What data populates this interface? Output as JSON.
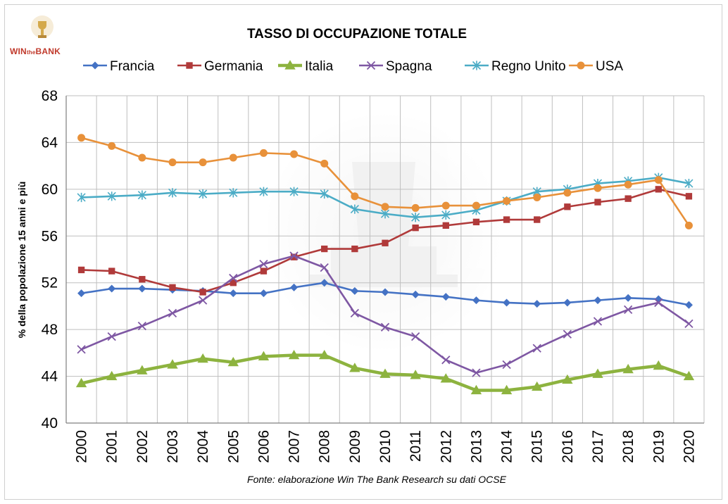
{
  "logo": {
    "brand_prefix": "WIN",
    "brand_mid": "the",
    "brand_suffix": "BANK"
  },
  "chart_data": {
    "type": "line",
    "title": "TASSO DI OCCUPAZIONE TOTALE",
    "ylabel": "% della popolazione 15 anni e più",
    "source": "Fonte: elaborazione Win The Bank Research su dati OCSE",
    "ylim": [
      40,
      68
    ],
    "yticks": [
      40,
      44,
      48,
      52,
      56,
      60,
      64,
      68
    ],
    "grid": true,
    "legend_position": "top",
    "x": [
      "2000",
      "2001",
      "2002",
      "2003",
      "2004",
      "2005",
      "2006",
      "2007",
      "2008",
      "2009",
      "2010",
      "2011",
      "2012",
      "2013",
      "2014",
      "2015",
      "2016",
      "2017",
      "2018",
      "2019",
      "2020"
    ],
    "series": [
      {
        "name": "Francia",
        "color": "#4472C4",
        "marker": "diamond",
        "values": [
          51.1,
          51.5,
          51.5,
          51.4,
          51.3,
          51.1,
          51.1,
          51.6,
          52.0,
          51.3,
          51.2,
          51.0,
          50.8,
          50.5,
          50.3,
          50.2,
          50.3,
          50.5,
          50.7,
          50.6,
          50.1
        ]
      },
      {
        "name": "Germania",
        "color": "#B03A3A",
        "marker": "square",
        "values": [
          53.1,
          53.0,
          52.3,
          51.6,
          51.2,
          52.0,
          53.0,
          54.2,
          54.9,
          54.9,
          55.4,
          56.7,
          56.9,
          57.2,
          57.4,
          57.4,
          58.5,
          58.9,
          59.2,
          60.0,
          59.4
        ]
      },
      {
        "name": "Italia",
        "color": "#8DB33F",
        "marker": "triangle",
        "values": [
          43.4,
          44.0,
          44.5,
          45.0,
          45.5,
          45.2,
          45.7,
          45.8,
          45.8,
          44.7,
          44.2,
          44.1,
          43.8,
          42.8,
          42.8,
          43.1,
          43.7,
          44.2,
          44.6,
          44.9,
          44.0
        ]
      },
      {
        "name": "Spagna",
        "color": "#7E57A3",
        "marker": "x",
        "values": [
          46.3,
          47.4,
          48.3,
          49.4,
          50.5,
          52.4,
          53.6,
          54.3,
          53.3,
          49.4,
          48.2,
          47.4,
          45.4,
          44.3,
          45.0,
          46.4,
          47.6,
          48.7,
          49.7,
          50.3,
          48.5
        ]
      },
      {
        "name": "Regno Unito",
        "color": "#4BACC6",
        "marker": "star",
        "values": [
          59.3,
          59.4,
          59.5,
          59.7,
          59.6,
          59.7,
          59.8,
          59.8,
          59.6,
          58.3,
          57.9,
          57.6,
          57.8,
          58.2,
          59.0,
          59.8,
          60.0,
          60.5,
          60.7,
          61.0,
          60.5
        ]
      },
      {
        "name": "USA",
        "color": "#E8913A",
        "marker": "circle",
        "values": [
          64.4,
          63.7,
          62.7,
          62.3,
          62.3,
          62.7,
          63.1,
          63.0,
          62.2,
          59.4,
          58.5,
          58.4,
          58.6,
          58.6,
          59.0,
          59.3,
          59.7,
          60.1,
          60.4,
          60.8,
          56.9
        ]
      }
    ]
  }
}
